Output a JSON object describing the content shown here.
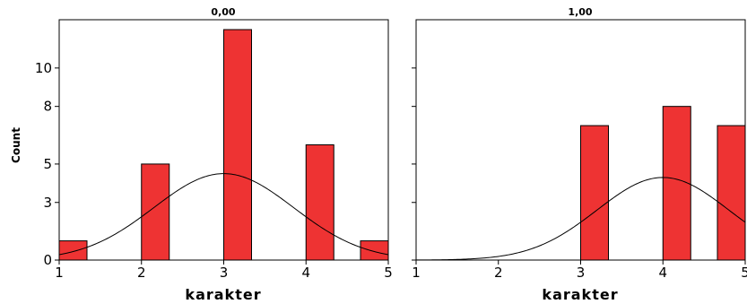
{
  "chart_data": {
    "type": "bar",
    "ylabel": "Count",
    "y_ticks": [
      0,
      3,
      5,
      8,
      10
    ],
    "x_ticks": [
      1,
      2,
      3,
      4,
      5
    ],
    "xlim": [
      1,
      5
    ],
    "ylim": [
      0,
      12
    ],
    "grid": false,
    "panels": [
      {
        "title": "0,00",
        "xlabel": "karakter",
        "categories": [
          1,
          2,
          3,
          4,
          5
        ],
        "values": [
          1,
          5,
          12,
          6,
          1
        ],
        "normal_curve": {
          "mean": 3.0,
          "sd": 0.85,
          "peak": 4.5
        }
      },
      {
        "title": "1,00",
        "xlabel": "karakter",
        "categories": [
          3,
          4,
          5
        ],
        "values": [
          7,
          8,
          7
        ],
        "normal_curve": {
          "mean": 4.0,
          "sd": 0.8,
          "peak": 4.3
        }
      }
    ],
    "bar_color": "#ee3333"
  }
}
